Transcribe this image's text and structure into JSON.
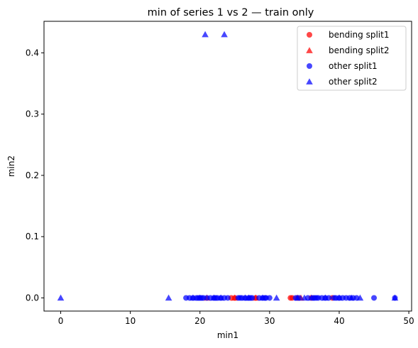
{
  "chart_data": {
    "type": "scatter",
    "title": "min of series 1 vs 2 — train only",
    "xlabel": "min1",
    "ylabel": "min2",
    "xlim": [
      -2.4,
      50.4
    ],
    "ylim": [
      -0.0215,
      0.4515
    ],
    "xticks": [
      0,
      10,
      20,
      30,
      40,
      50
    ],
    "yticks": [
      0.0,
      0.1,
      0.2,
      0.3,
      0.4
    ],
    "xtick_labels": [
      "0",
      "10",
      "20",
      "30",
      "40",
      "50"
    ],
    "ytick_labels": [
      "0.0",
      "0.1",
      "0.2",
      "0.3",
      "0.4"
    ],
    "grid": false,
    "legend_position": "top-right",
    "series": [
      {
        "name": "bending split1",
        "color": "#ff0000",
        "marker": "circle",
        "points": [
          [
            24.5,
            0
          ],
          [
            25.0,
            0
          ],
          [
            28.0,
            0
          ],
          [
            33.0,
            0
          ],
          [
            33.25,
            0
          ],
          [
            34.0,
            0
          ],
          [
            36.0,
            0
          ],
          [
            39.0,
            0
          ]
        ]
      },
      {
        "name": "bending split2",
        "color": "#ff0000",
        "marker": "triangle",
        "points": [
          [
            21.0,
            0
          ],
          [
            25.0,
            0
          ],
          [
            28.0,
            0
          ],
          [
            34.5,
            0
          ]
        ]
      },
      {
        "name": "other split1",
        "color": "#0000ff",
        "marker": "circle",
        "points": [
          [
            18.0,
            0
          ],
          [
            18.5,
            0
          ],
          [
            19.0,
            0
          ],
          [
            19.5,
            0
          ],
          [
            19.75,
            0
          ],
          [
            20.0,
            0
          ],
          [
            20.25,
            0
          ],
          [
            20.5,
            0
          ],
          [
            21.0,
            0
          ],
          [
            21.5,
            0
          ],
          [
            22.0,
            0
          ],
          [
            22.25,
            0
          ],
          [
            22.5,
            0
          ],
          [
            23.0,
            0
          ],
          [
            23.5,
            0
          ],
          [
            24.0,
            0
          ],
          [
            25.5,
            0
          ],
          [
            25.75,
            0
          ],
          [
            26.0,
            0
          ],
          [
            26.5,
            0
          ],
          [
            27.0,
            0
          ],
          [
            27.25,
            0
          ],
          [
            27.5,
            0
          ],
          [
            28.5,
            0
          ],
          [
            29.0,
            0
          ],
          [
            29.33,
            0
          ],
          [
            29.5,
            0
          ],
          [
            30.0,
            0
          ],
          [
            33.75,
            0
          ],
          [
            34.25,
            0
          ],
          [
            35.5,
            0
          ],
          [
            36.25,
            0
          ],
          [
            36.5,
            0
          ],
          [
            36.75,
            0
          ],
          [
            37.0,
            0
          ],
          [
            37.5,
            0
          ],
          [
            38.0,
            0
          ],
          [
            38.5,
            0
          ],
          [
            39.25,
            0
          ],
          [
            39.5,
            0
          ],
          [
            40.0,
            0
          ],
          [
            40.5,
            0
          ],
          [
            41.0,
            0
          ],
          [
            41.5,
            0
          ],
          [
            42.0,
            0
          ],
          [
            42.5,
            0
          ],
          [
            45.0,
            0
          ],
          [
            48.0,
            0
          ]
        ]
      },
      {
        "name": "other split2",
        "color": "#0000ff",
        "marker": "triangle",
        "points": [
          [
            0.0,
            0
          ],
          [
            15.5,
            0
          ],
          [
            19.0,
            0
          ],
          [
            20.0,
            0
          ],
          [
            20.75,
            0.43
          ],
          [
            23.5,
            0.43
          ],
          [
            22.0,
            0
          ],
          [
            23.0,
            0
          ],
          [
            26.5,
            0
          ],
          [
            27.0,
            0
          ],
          [
            29.0,
            0
          ],
          [
            31.0,
            0
          ],
          [
            34.0,
            0
          ],
          [
            35.0,
            0
          ],
          [
            36.0,
            0
          ],
          [
            38.0,
            0
          ],
          [
            40.0,
            0
          ],
          [
            41.75,
            0
          ],
          [
            43.0,
            0
          ],
          [
            48.0,
            0
          ]
        ]
      }
    ]
  }
}
